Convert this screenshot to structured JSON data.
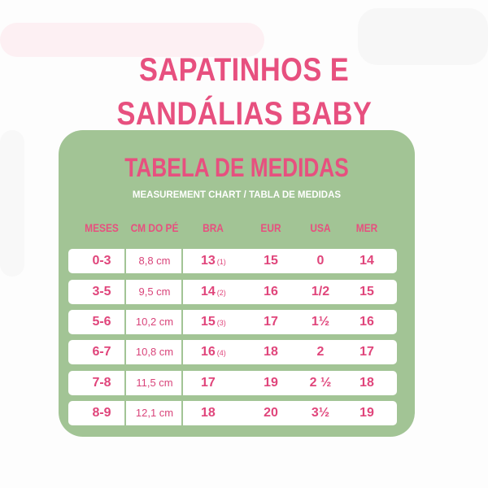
{
  "title_lines": [
    "SAPATINHOS E",
    "SANDÁLIAS BABY"
  ],
  "panel": {
    "title": "TABELA DE MEDIDAS",
    "subtitle": "MEASUREMENT CHART / TABLA DE MEDIDAS"
  },
  "colors": {
    "accent": "#e7507f",
    "panel": "#a2c495",
    "row": "#ffffff"
  },
  "table": {
    "headers": [
      "MESES",
      "CM DO PÉ",
      "BRA",
      "EUR",
      "USA",
      "MER"
    ],
    "rows": [
      {
        "meses": "0-3",
        "cm": "8,8 cm",
        "bra": "13",
        "bra_note": "(1)",
        "eur": "15",
        "usa": "0",
        "mer": "14"
      },
      {
        "meses": "3-5",
        "cm": "9,5 cm",
        "bra": "14",
        "bra_note": "(2)",
        "eur": "16",
        "usa": "1/2",
        "mer": "15"
      },
      {
        "meses": "5-6",
        "cm": "10,2 cm",
        "bra": "15",
        "bra_note": "(3)",
        "eur": "17",
        "usa": "1½",
        "mer": "16"
      },
      {
        "meses": "6-7",
        "cm": "10,8 cm",
        "bra": "16",
        "bra_note": "(4)",
        "eur": "18",
        "usa": "2",
        "mer": "17"
      },
      {
        "meses": "7-8",
        "cm": "11,5 cm",
        "bra": "17",
        "bra_note": "",
        "eur": "19",
        "usa": "2 ½",
        "mer": "18"
      },
      {
        "meses": "8-9",
        "cm": "12,1 cm",
        "bra": "18",
        "bra_note": "",
        "eur": "20",
        "usa": "3½",
        "mer": "19"
      }
    ]
  }
}
